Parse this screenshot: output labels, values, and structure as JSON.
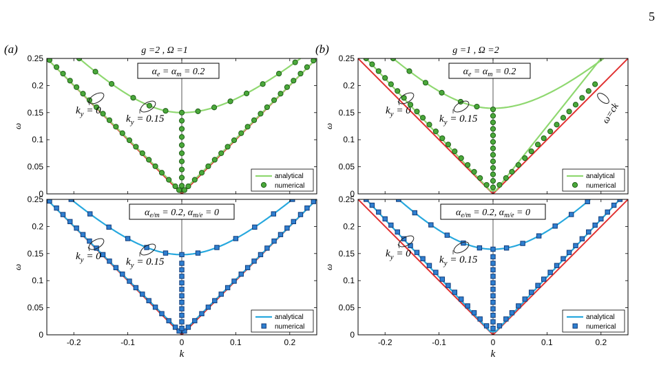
{
  "page": {
    "number": "5"
  },
  "chart_data": [
    {
      "id": "a-top",
      "type": "line",
      "panel_label": "(a)",
      "header": "g =2 , Ω =1",
      "box_label": "αe = αm = 0.2",
      "box_parts": {
        "s1": "e",
        "s2": "m",
        "value": "= 0.2"
      },
      "xlabel": "",
      "ylabel": "ω",
      "xlim": [
        -0.25,
        0.25
      ],
      "ylim": [
        0,
        0.25
      ],
      "yticks": [
        "0",
        "0.05",
        "0.1",
        "0.15",
        "0.2",
        "0.25"
      ],
      "xticks": [],
      "accent": "#8fd870",
      "light_line": {
        "k": [
          -0.25,
          0,
          0.25
        ],
        "omega": [
          0.25,
          0,
          0.25
        ],
        "color": "#e03030"
      },
      "curve_ky0": {
        "label": "ky = 0",
        "k": [
          -0.25,
          0,
          0.25
        ],
        "omega": [
          0.25,
          0.003,
          0.25
        ]
      },
      "curve_ky015": {
        "label": "ky = 0.15",
        "omega0": 0.15,
        "k_range": [
          -0.19,
          0.22
        ]
      },
      "numerical_ky0_k": [
        -0.245,
        -0.232,
        -0.22,
        -0.207,
        -0.195,
        -0.183,
        -0.171,
        -0.158,
        -0.146,
        -0.134,
        -0.122,
        -0.11,
        -0.097,
        -0.085,
        -0.073,
        -0.061,
        -0.049,
        -0.037,
        -0.024,
        -0.012,
        -0.005,
        0.005,
        0.012,
        0.024,
        0.037,
        0.049,
        0.061,
        0.073,
        0.085,
        0.097,
        0.11,
        0.122,
        0.134,
        0.146,
        0.158,
        0.171,
        0.183,
        0.195,
        0.207,
        0.22,
        0.232,
        0.244
      ],
      "numerical_ky015_k": [
        -0.19,
        -0.16,
        -0.13,
        -0.09,
        -0.06,
        -0.03,
        0,
        0.03,
        0.06,
        0.09,
        0.12,
        0.15,
        0.18,
        0.21
      ],
      "numerical_vertical_omega": [
        0.015,
        0.03,
        0.045,
        0.06,
        0.075,
        0.09,
        0.105,
        0.12,
        0.135
      ],
      "legend": [
        {
          "label": "analytical",
          "style": "line"
        },
        {
          "label": "numerical",
          "style": "marker"
        }
      ],
      "marker": "circle"
    },
    {
      "id": "a-bottom",
      "type": "line",
      "box_label": "αe/m = 0.2, αm/e = 0",
      "box_parts": {
        "s1": "e/m",
        "mid": "= 0.2,",
        "s2": "m/e",
        "value": "= 0"
      },
      "xlabel": "k",
      "ylabel": "ω",
      "xlim": [
        -0.25,
        0.25
      ],
      "ylim": [
        0,
        0.25
      ],
      "yticks": [
        "0",
        "0.05",
        "0.1",
        "0.15",
        "0.2",
        "0.25"
      ],
      "xticks": [
        "-0.2",
        "-0.1",
        "0",
        "0.1",
        "0.2"
      ],
      "accent": "#27a8de",
      "light_line": {
        "k": [
          -0.25,
          0,
          0.25
        ],
        "omega": [
          0.25,
          0,
          0.25
        ],
        "color": "#e03030"
      },
      "curve_ky0": {
        "label": "ky = 0",
        "k": [
          -0.25,
          0,
          0.25
        ],
        "omega": [
          0.25,
          0.003,
          0.25
        ]
      },
      "curve_ky015": {
        "label": "ky = 0.15",
        "omega0": 0.148,
        "k_range": [
          -0.205,
          0.205
        ]
      },
      "numerical_ky0_k": [
        -0.245,
        -0.232,
        -0.22,
        -0.207,
        -0.195,
        -0.183,
        -0.171,
        -0.158,
        -0.146,
        -0.134,
        -0.122,
        -0.11,
        -0.097,
        -0.085,
        -0.073,
        -0.061,
        -0.049,
        -0.037,
        -0.024,
        -0.012,
        -0.005,
        0.005,
        0.012,
        0.024,
        0.037,
        0.049,
        0.061,
        0.073,
        0.085,
        0.097,
        0.11,
        0.122,
        0.134,
        0.146,
        0.158,
        0.171,
        0.183,
        0.195,
        0.207,
        0.22,
        0.232,
        0.244
      ],
      "numerical_ky015_k": [
        -0.205,
        -0.17,
        -0.135,
        -0.1,
        -0.065,
        -0.03,
        0,
        0.03,
        0.065,
        0.1,
        0.135,
        0.17,
        0.205
      ],
      "numerical_vertical_omega": [
        0.012,
        0.024,
        0.036,
        0.048,
        0.06,
        0.072,
        0.084,
        0.096,
        0.108,
        0.12,
        0.132
      ],
      "legend": [
        {
          "label": "analytical",
          "style": "line"
        },
        {
          "label": "numerical",
          "style": "marker"
        }
      ],
      "marker": "square"
    },
    {
      "id": "b-top",
      "type": "line",
      "panel_label": "(b)",
      "header": "g =1 , Ω =2",
      "box_label": "αe = αm = 0.2",
      "box_parts": {
        "s1": "e",
        "s2": "m",
        "value": "= 0.2"
      },
      "annotation": "ω=ck",
      "xlabel": "",
      "ylabel": "ω",
      "xlim": [
        -0.25,
        0.25
      ],
      "ylim": [
        0,
        0.25
      ],
      "yticks": [
        "0",
        "0.05",
        "0.1",
        "0.15",
        "0.2",
        "0.25"
      ],
      "xticks": [],
      "accent": "#8fd870",
      "light_line": {
        "k": [
          -0.25,
          0,
          0.25
        ],
        "omega": [
          0.25,
          0,
          0.25
        ],
        "color": "#e03030"
      },
      "curve_ky0": {
        "label": "ky = 0",
        "k": [
          -0.235,
          -0.005,
          0.005,
          0.2
        ],
        "omega": [
          0.25,
          0.006,
          0.006,
          0.25
        ]
      },
      "curve_ky015": {
        "label": "ky = 0.15",
        "omega0": 0.158,
        "k_range": [
          -0.185,
          0.205
        ]
      },
      "numerical_ky0_k": [
        -0.235,
        -0.224,
        -0.212,
        -0.2,
        -0.189,
        -0.177,
        -0.165,
        -0.153,
        -0.141,
        -0.13,
        -0.118,
        -0.106,
        -0.094,
        -0.083,
        -0.071,
        -0.059,
        -0.047,
        -0.035,
        -0.024,
        -0.012,
        0.012,
        0.024,
        0.035,
        0.047,
        0.059,
        0.071,
        0.083,
        0.094,
        0.106,
        0.118,
        0.13,
        0.141,
        0.153,
        0.165,
        0.177,
        0.189
      ],
      "numerical_ky015_k": [
        -0.185,
        -0.155,
        -0.125,
        -0.095,
        -0.06,
        -0.03
      ],
      "numerical_vertical_omega": [
        0.012,
        0.024,
        0.036,
        0.048,
        0.06,
        0.072,
        0.084,
        0.096,
        0.108,
        0.12,
        0.132,
        0.144,
        0.156
      ],
      "legend": [
        {
          "label": "analytical",
          "style": "line"
        },
        {
          "label": "numerical",
          "style": "marker"
        }
      ],
      "marker": "circle"
    },
    {
      "id": "b-bottom",
      "type": "line",
      "box_label": "αe/m = 0.2, αm/e = 0",
      "box_parts": {
        "s1": "e/m",
        "mid": "= 0.2,",
        "s2": "m/e",
        "value": "= 0"
      },
      "xlabel": "k",
      "ylabel": "ω",
      "xlim": [
        -0.25,
        0.25
      ],
      "ylim": [
        0,
        0.25
      ],
      "yticks": [
        "0",
        "0.05",
        "0.1",
        "0.15",
        "0.2",
        "0.25"
      ],
      "xticks": [
        "-0.2",
        "-0.1",
        "0",
        "0.1",
        "0.2"
      ],
      "accent": "#27a8de",
      "light_line": {
        "k": [
          -0.25,
          0,
          0.25
        ],
        "omega": [
          0.25,
          0,
          0.25
        ],
        "color": "#e03030"
      },
      "curve_ky0": {
        "label": "ky = 0",
        "k": [
          -0.235,
          -0.005,
          0.005,
          0.235
        ],
        "omega": [
          0.25,
          0.006,
          0.006,
          0.25
        ]
      },
      "curve_ky015": {
        "label": "ky = 0.15",
        "omega0": 0.158,
        "k_range": [
          -0.175,
          0.18
        ]
      },
      "numerical_ky0_k": [
        -0.235,
        -0.224,
        -0.212,
        -0.2,
        -0.189,
        -0.177,
        -0.165,
        -0.153,
        -0.141,
        -0.13,
        -0.118,
        -0.106,
        -0.094,
        -0.083,
        -0.071,
        -0.059,
        -0.047,
        -0.035,
        -0.024,
        -0.012,
        0.012,
        0.024,
        0.035,
        0.047,
        0.059,
        0.071,
        0.083,
        0.094,
        0.106,
        0.118,
        0.13,
        0.141,
        0.153,
        0.165,
        0.177,
        0.189,
        0.2,
        0.212,
        0.224,
        0.235
      ],
      "numerical_ky015_k": [
        -0.175,
        -0.145,
        -0.115,
        -0.085,
        -0.055,
        -0.025,
        0,
        0.025,
        0.055,
        0.085,
        0.115,
        0.145,
        0.175
      ],
      "numerical_vertical_omega": [
        0.012,
        0.024,
        0.036,
        0.048,
        0.06,
        0.072,
        0.084,
        0.096,
        0.108,
        0.12,
        0.132,
        0.144
      ],
      "legend": [
        {
          "label": "analytical",
          "style": "line"
        },
        {
          "label": "numerical",
          "style": "marker"
        }
      ],
      "marker": "square"
    }
  ]
}
